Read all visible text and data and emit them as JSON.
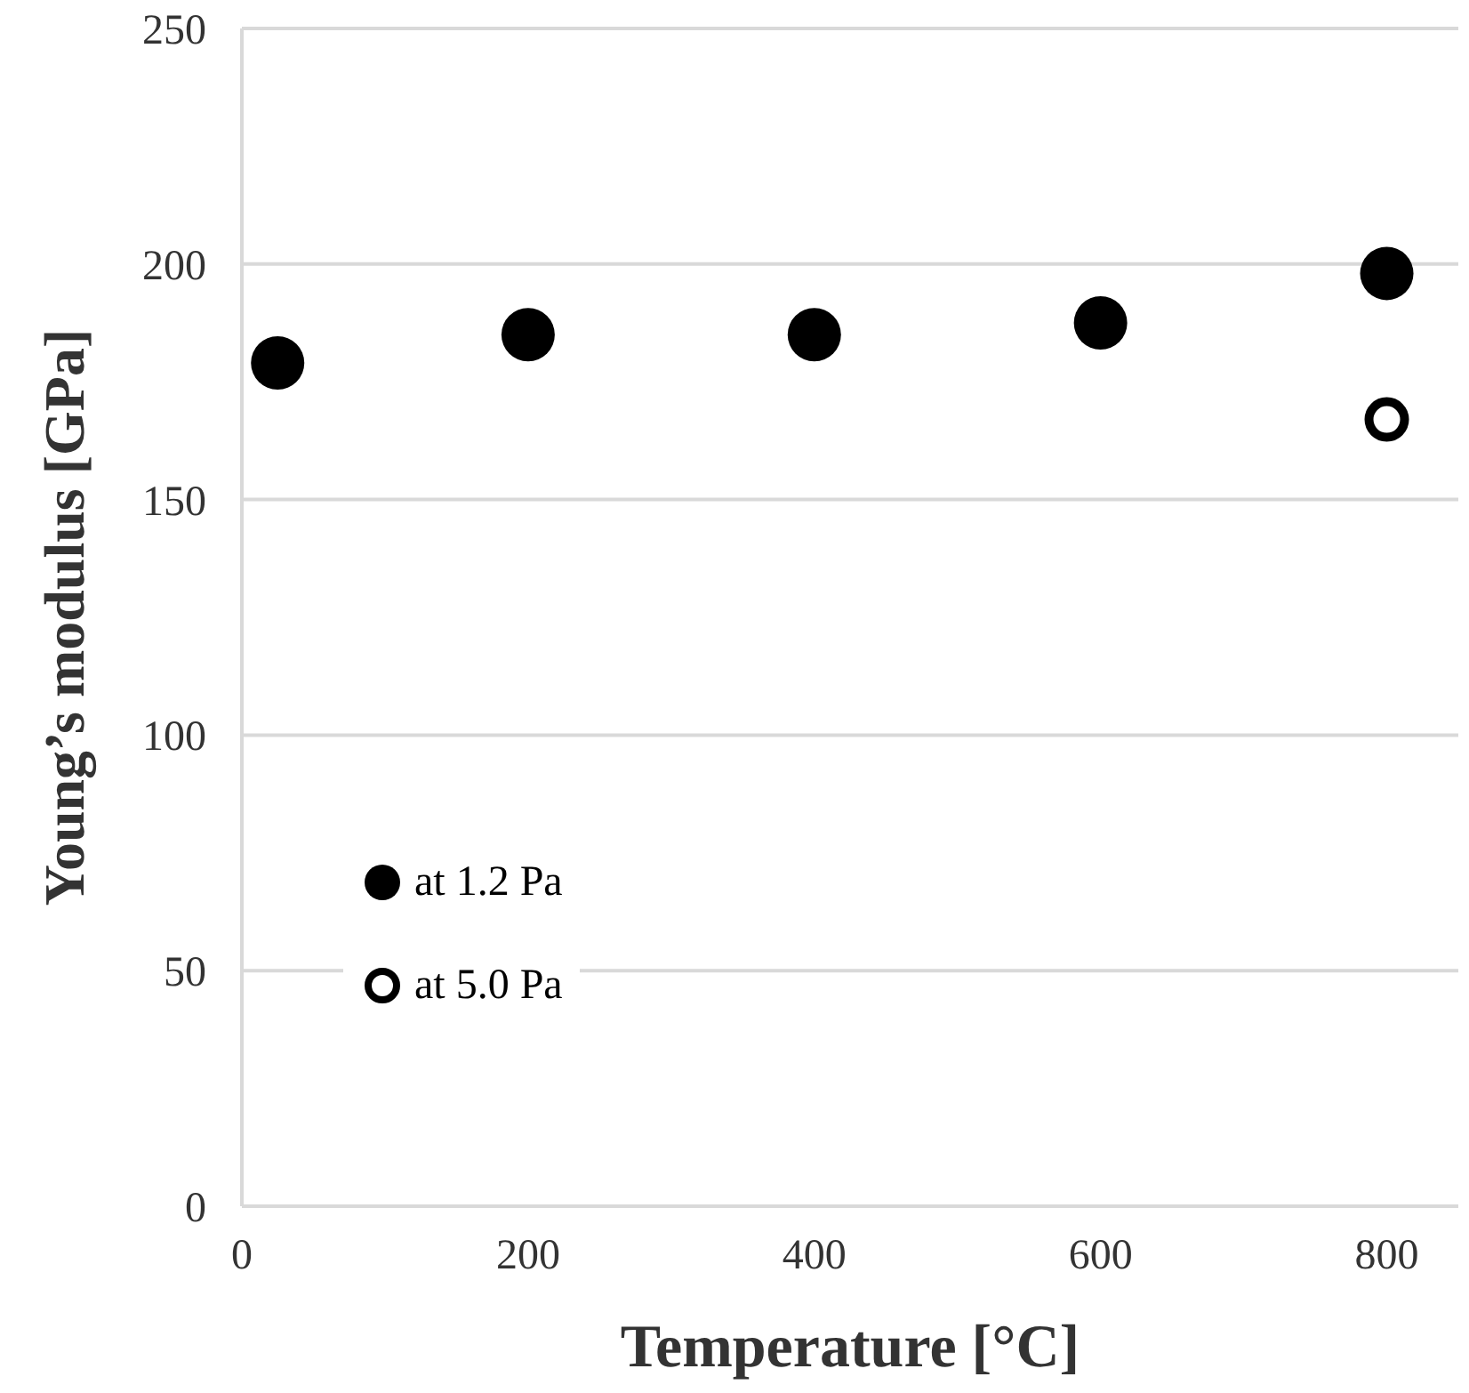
{
  "chart_data": {
    "type": "scatter",
    "xlabel": "Temperature [°C]",
    "ylabel": "Young’s modulus [GPa]",
    "xlim": [
      0,
      850
    ],
    "xticks": [
      0,
      200,
      400,
      600,
      800
    ],
    "ylim": [
      0,
      250
    ],
    "yticks": [
      0,
      50,
      100,
      150,
      200,
      250
    ],
    "grid": "y",
    "legend": "bottom left",
    "marker": "circle",
    "series": [
      {
        "name": "at 1.2 Pa",
        "color": "#000000",
        "x": [
          25,
          200,
          400,
          600,
          800
        ],
        "values": [
          179,
          185,
          185,
          187.5,
          198
        ]
      },
      {
        "name": "at 5.0 Pa",
        "color": "#000000",
        "x": [
          800
        ],
        "values": [
          167
        ]
      }
    ]
  }
}
